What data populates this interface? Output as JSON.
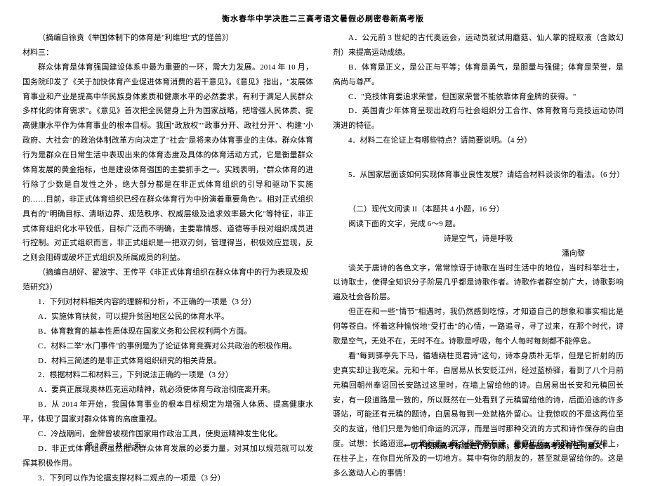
{
  "header": "衡水春华中学决胜二三高考语文暑假必刷密卷新高考版",
  "left": {
    "source1": "（摘编自徐贲《举国体制下的体育是\"利维坦\"式的怪兽》）",
    "material3_label": "材料三：",
    "para1": "群众体育是体育强国建设体系中最为重要的一环，需大力发展。2014 年 10 月，国务院印发了《关于加快体育产业促进体育消费的若干意见》。《意见》指出，\"发展体育事业和产业是提高中华民族身体素质和健康水平的必然要求，有利于满足人民群众多样化的体育需求\"。《意见》首次把全民健身上升为国家战略，把增强人民体质、提高健康水平作为体育事业的根本目标。我国\"政放权\"\"政事分开、政社分开\"、构建\"小政府、大社会\"的政治体制改革方向决定了\"社会\"是将来办体育事业的主体。群众体育行为是群众在日常生活中表现出来的体育态度及具体的体育活动方式，它是衡量群众体育发展的黄金指标，也是建设体育强国的主要抓手之一。实践表明，\"群众体育的进行除了少数是自发性之外，绝大部分都是在非正式体育组织的引导和驱动下实施的……目前，非正式体育组织已经在群众体育行为中扮演着重要角色\"。相对正式组织具有的\"明确目标、清晰边界、规范秩序、权威层级及追求效率最大化\"等特征，非正式体育组织化水平较低，目标广泛而不明确，主要靠情感、道德等手段对组织成员进行控制。对正式组织而言，非正式组织是一把双刃剑，管理得当，积极效应显现，反之则会阻碍或破坏正式组织及所属成员的利益。",
    "source2": "（摘编自胡好、翟波宇、王传平《非正式体育组织在群众体育中的行为表现及规范研究》）",
    "q1": {
      "stem": "1．下列对材料相关内容的理解和分析，不正确的一项是（3 分）",
      "A": "A．实施体育扶贫，可以提升贫困地区公民的体育水平。",
      "B": "B．体育教育的基本性质体现在国家义务和公民权利两个方面。",
      "C": "C．材料二举\"水门事件\"的事例是为了论证体育竞赛对公共政治的积极作用。",
      "D": "D．材料三简述的是非正式体育组织研究的相关背景。"
    },
    "q2": {
      "stem": "2．根据材料二和材料三，下列说法正确的一项是（3 分）",
      "A": "A．要真正展现奥林匹克运动精神，就必须使体育与政治彻底离开来。",
      "B": "B．从 2014 年开始，我国体育事业的根本目标规定为增强人体质、提高健康水平，体现了国家对群众体育的高度重视。",
      "C": "C．冷战期间，金牌曾被视作国家用作政治工具，使奥运精神发生化化。",
      "D": "D．非正式体育组织虽然推动群众体育发展的必要力量，对其加以规范就可以发挥其积极作用。"
    },
    "q3_stem": "3．下列可以作为论据支撑材料二观点的一项是（3 分）"
  },
  "right": {
    "q3": {
      "A": "A．公元前 3 世纪的古代奥运会，运动员就试用蘑菇、仙人掌的提取液（含致幻剂）来提高运动成绩。",
      "B": "B．体育是正义，是公正与平等；体育是勇气，是胆量与强健；体育是荣誉，是高尚与尊严。",
      "C": "C．\"竞技体育要追求荣誉，但国家荣誉不能依靠体育金牌的获得。\"",
      "D": "D．英国青少年体育呈现出政府与社会组织分工合作、体育教育与竞技运动协同演进的特征。"
    },
    "q4": "4．材料二在论证上有哪些特点？请简要说明。（4 分）",
    "q5": "5．从国家层面该如何实现体育事业良性发展？请结合材料谈谈你的看法。（6 分）",
    "section": "（二）现代文阅读 II（本题共 4 小题，16 分）",
    "instr": "阅读下面的文字，完成 6～9 题。",
    "title": "诗是空气，诗是呼吸",
    "author": "潘向黎",
    "p1": "谈关于唐诗的各色文字，常常惊讶于诗歌在当时生活中的地位，当时科举壮士，以诗取士，使得全知识分子阶层几乎都是诗歌作者。诗歌作者群空前广大，诗歌影响遍及社会各阶层。",
    "p2": "但正在和一些\"情节\"相遇时，我仍然感到吃惊，才知道自己的想象和事实相比是何等苍白。怀着这种愉悦地\"受打击\"的心情，一路追寻，寻了过来，在那个时代，诗歌是空气，无处不在，无时不在。诗歌是呼吸，每个人每时每刻都不能停息。",
    "p3": "看\"每到驿亭先下马，循墙绕柱觅君诗\"这句，诗本身质朴无华，但是它折射的历史真实却让我吃呆。元和十年，白居易从长安贬江州，经过蓝桥驿，看到了八个月前元稹回朝州奉诏回长安路过这里时，在墙上留给他的诗。白居易出长安和元稹回长安，有一段道路是一致的，所以既然在一处看到了元稹留给他的诗，后面沿途的许多驿站，可能还有元稹的题诗，白居易每到一处就格外留心。让我惊叹的不是这两位至交的友谊，他们只是为他们命运的沉浮，而是当时那种交流的方式和诗作保存的自由度。试想：长路迢迢，一路行去，每个驿亭都有诗，墨痕历历，诗韵淋漓，在墙上，在柱子上，在你目光所及的一切地方。其中有你的朋友的，甚至就是留给你的。这是多么激动人心的事情！"
  },
  "footer": {
    "page": "第 2 页　共 13 页",
    "tagline": "一切不按照高考标准进行的训练，都对备战高考没有任何意义！"
  }
}
